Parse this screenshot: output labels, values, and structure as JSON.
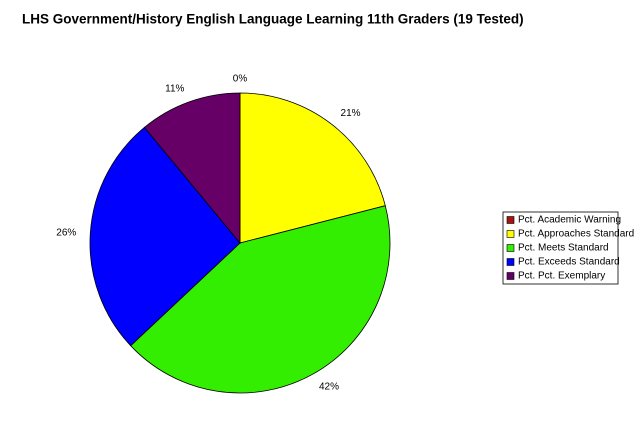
{
  "chart_data": {
    "type": "pie",
    "title": "LHS Government/History English Language Learning 11th Graders (19 Tested)",
    "series": [
      {
        "name": "Pct. Academic Warning",
        "color": "#aa1111",
        "values": [
          0
        ],
        "value_labels": [
          "0%"
        ]
      },
      {
        "name": "Pct. Approaches Standard",
        "color": "#ffff00",
        "values": [
          21
        ],
        "value_labels": [
          "21%"
        ]
      },
      {
        "name": "Pct. Meets Standard",
        "color": "#33ee00",
        "values": [
          42
        ],
        "value_labels": [
          "42%"
        ]
      },
      {
        "name": "Pct. Exceeds Standard",
        "color": "#0000ff",
        "values": [
          26
        ],
        "value_labels": [
          "26%"
        ]
      },
      {
        "name": "Pct. Pct. Exemplary",
        "color": "#660066",
        "values": [
          11
        ],
        "value_labels": [
          "11%"
        ]
      }
    ],
    "legend": "right"
  }
}
